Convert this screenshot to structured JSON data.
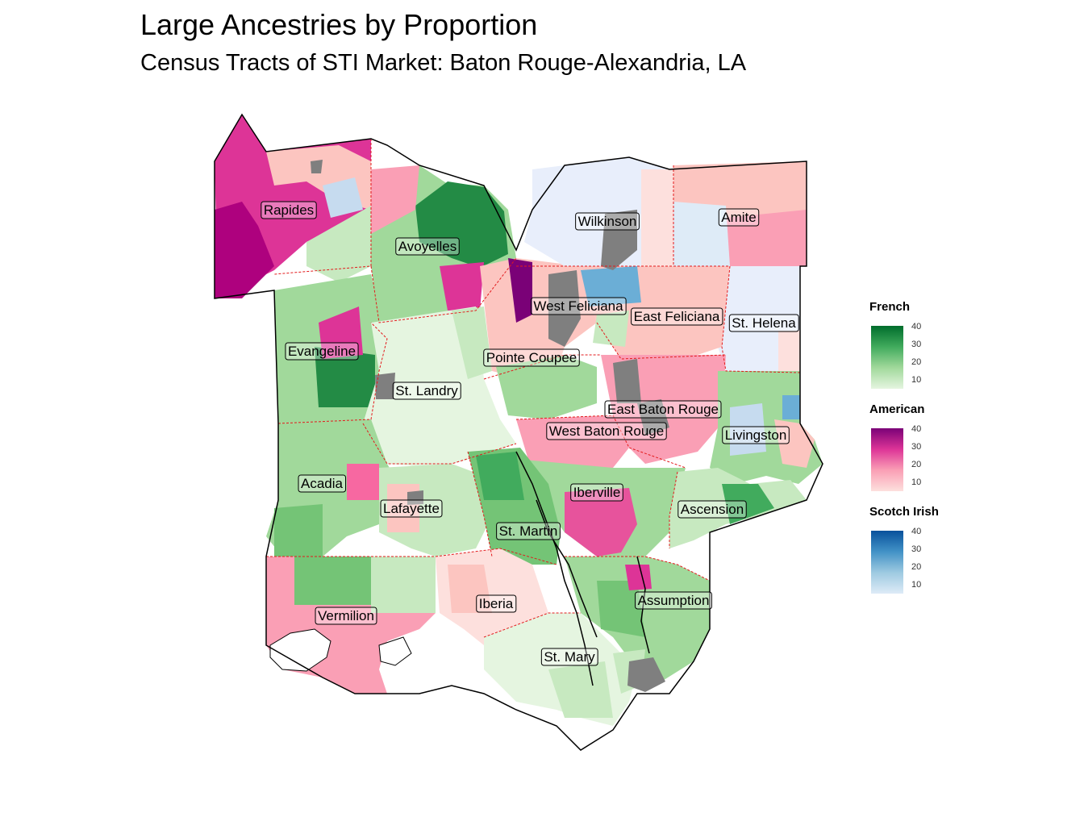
{
  "title": "Large Ancestries by Proportion",
  "subtitle": "Census Tracts of STI Market: Baton Rouge-Alexandria, LA",
  "map": {
    "parish_labels": [
      {
        "id": "rapides",
        "name": "Rapides"
      },
      {
        "id": "avoyelles",
        "name": "Avoyelles"
      },
      {
        "id": "wilkinson",
        "name": "Wilkinson"
      },
      {
        "id": "amite",
        "name": "Amite"
      },
      {
        "id": "west-feliciana",
        "name": "West Feliciana"
      },
      {
        "id": "east-feliciana",
        "name": "East Feliciana"
      },
      {
        "id": "st-helena",
        "name": "St. Helena"
      },
      {
        "id": "evangeline",
        "name": "Evangeline"
      },
      {
        "id": "pointe-coupee",
        "name": "Pointe Coupee"
      },
      {
        "id": "st-landry",
        "name": "St. Landry"
      },
      {
        "id": "east-baton-rouge",
        "name": "East Baton Rouge"
      },
      {
        "id": "west-baton-rouge",
        "name": "West Baton Rouge"
      },
      {
        "id": "livingston",
        "name": "Livingston"
      },
      {
        "id": "acadia",
        "name": "Acadia"
      },
      {
        "id": "iberville",
        "name": "Iberville"
      },
      {
        "id": "lafayette",
        "name": "Lafayette"
      },
      {
        "id": "ascension",
        "name": "Ascension"
      },
      {
        "id": "st-martin",
        "name": "St. Martin"
      },
      {
        "id": "assumption",
        "name": "Assumption"
      },
      {
        "id": "iberia",
        "name": "Iberia"
      },
      {
        "id": "vermilion",
        "name": "Vermilion"
      },
      {
        "id": "st-mary",
        "name": "St. Mary"
      }
    ]
  },
  "legend": [
    {
      "id": "french",
      "title": "French",
      "ticks": [
        "40",
        "30",
        "20",
        "10"
      ],
      "colors": [
        "#006d2c",
        "#41ab5d",
        "#a1d99b",
        "#e5f5e0"
      ]
    },
    {
      "id": "american",
      "title": "American",
      "ticks": [
        "40",
        "30",
        "20",
        "10"
      ],
      "colors": [
        "#7a0177",
        "#dd3497",
        "#fa9fb5",
        "#fde0dd"
      ]
    },
    {
      "id": "scotch-irish",
      "title": "Scotch Irish",
      "ticks": [
        "40",
        "30",
        "20",
        "10"
      ],
      "colors": [
        "#08519c",
        "#4292c6",
        "#9ecae1",
        "#deebf7"
      ]
    }
  ],
  "colors": {
    "missing": "#7f7f7f",
    "parish_border": "#e31a1c",
    "outline": "#000000"
  }
}
